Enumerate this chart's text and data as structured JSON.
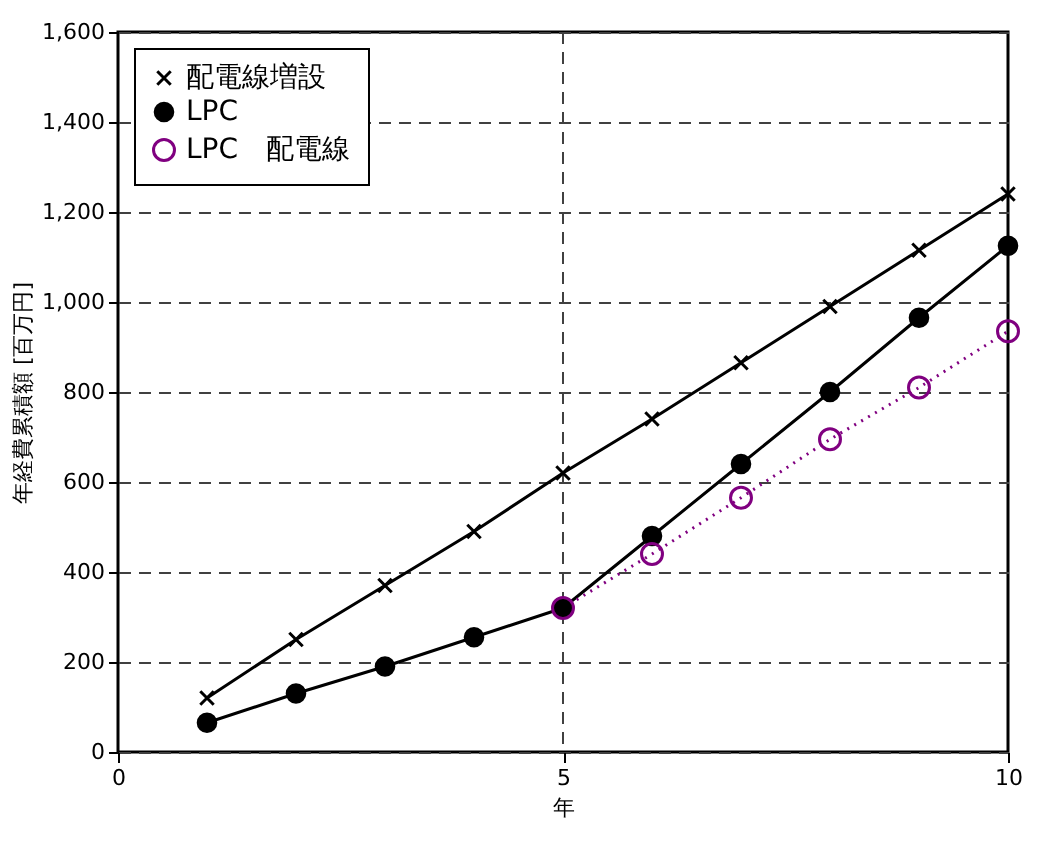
{
  "chart_data": {
    "type": "line",
    "xlabel": "年",
    "ylabel": "年経費累積額 [百万円]",
    "xlim": [
      0,
      10
    ],
    "xticks": [
      0,
      5,
      10
    ],
    "ylim": [
      0,
      1600
    ],
    "yticks": [
      0,
      200,
      400,
      600,
      800,
      {
        "value": 1000,
        "label": "1,000"
      },
      {
        "value": 1200,
        "label": "1,200"
      },
      {
        "value": 1400,
        "label": "1,400"
      },
      {
        "value": 1600,
        "label": "1,600"
      }
    ],
    "grid": "y",
    "legend": "top left",
    "ref_lines": [
      {
        "axis": "x",
        "value": 5,
        "color": "#404040",
        "line_style": "dashed"
      }
    ],
    "series": [
      {
        "name": "配電線増設",
        "color": "#000000",
        "marker": "cross",
        "line_style": "solid",
        "x": [
          1,
          2,
          3,
          4,
          5,
          6,
          7,
          8,
          9,
          10
        ],
        "values": [
          120,
          250,
          370,
          490,
          620,
          740,
          865,
          990,
          1115,
          1240
        ]
      },
      {
        "name": "LPC",
        "color": "#000000",
        "marker": "circle",
        "line_style": "solid",
        "x": [
          1,
          2,
          3,
          4,
          5,
          6,
          7,
          8,
          9,
          10
        ],
        "values": [
          65,
          130,
          190,
          255,
          320,
          480,
          640,
          800,
          965,
          1125
        ]
      },
      {
        "name": "LPC　配電線",
        "color": "#800080",
        "marker": "circle_open",
        "line_style": "dotted",
        "x": [
          5,
          6,
          7,
          8,
          9,
          10
        ],
        "values": [
          320,
          440,
          565,
          695,
          810,
          935
        ]
      }
    ]
  }
}
